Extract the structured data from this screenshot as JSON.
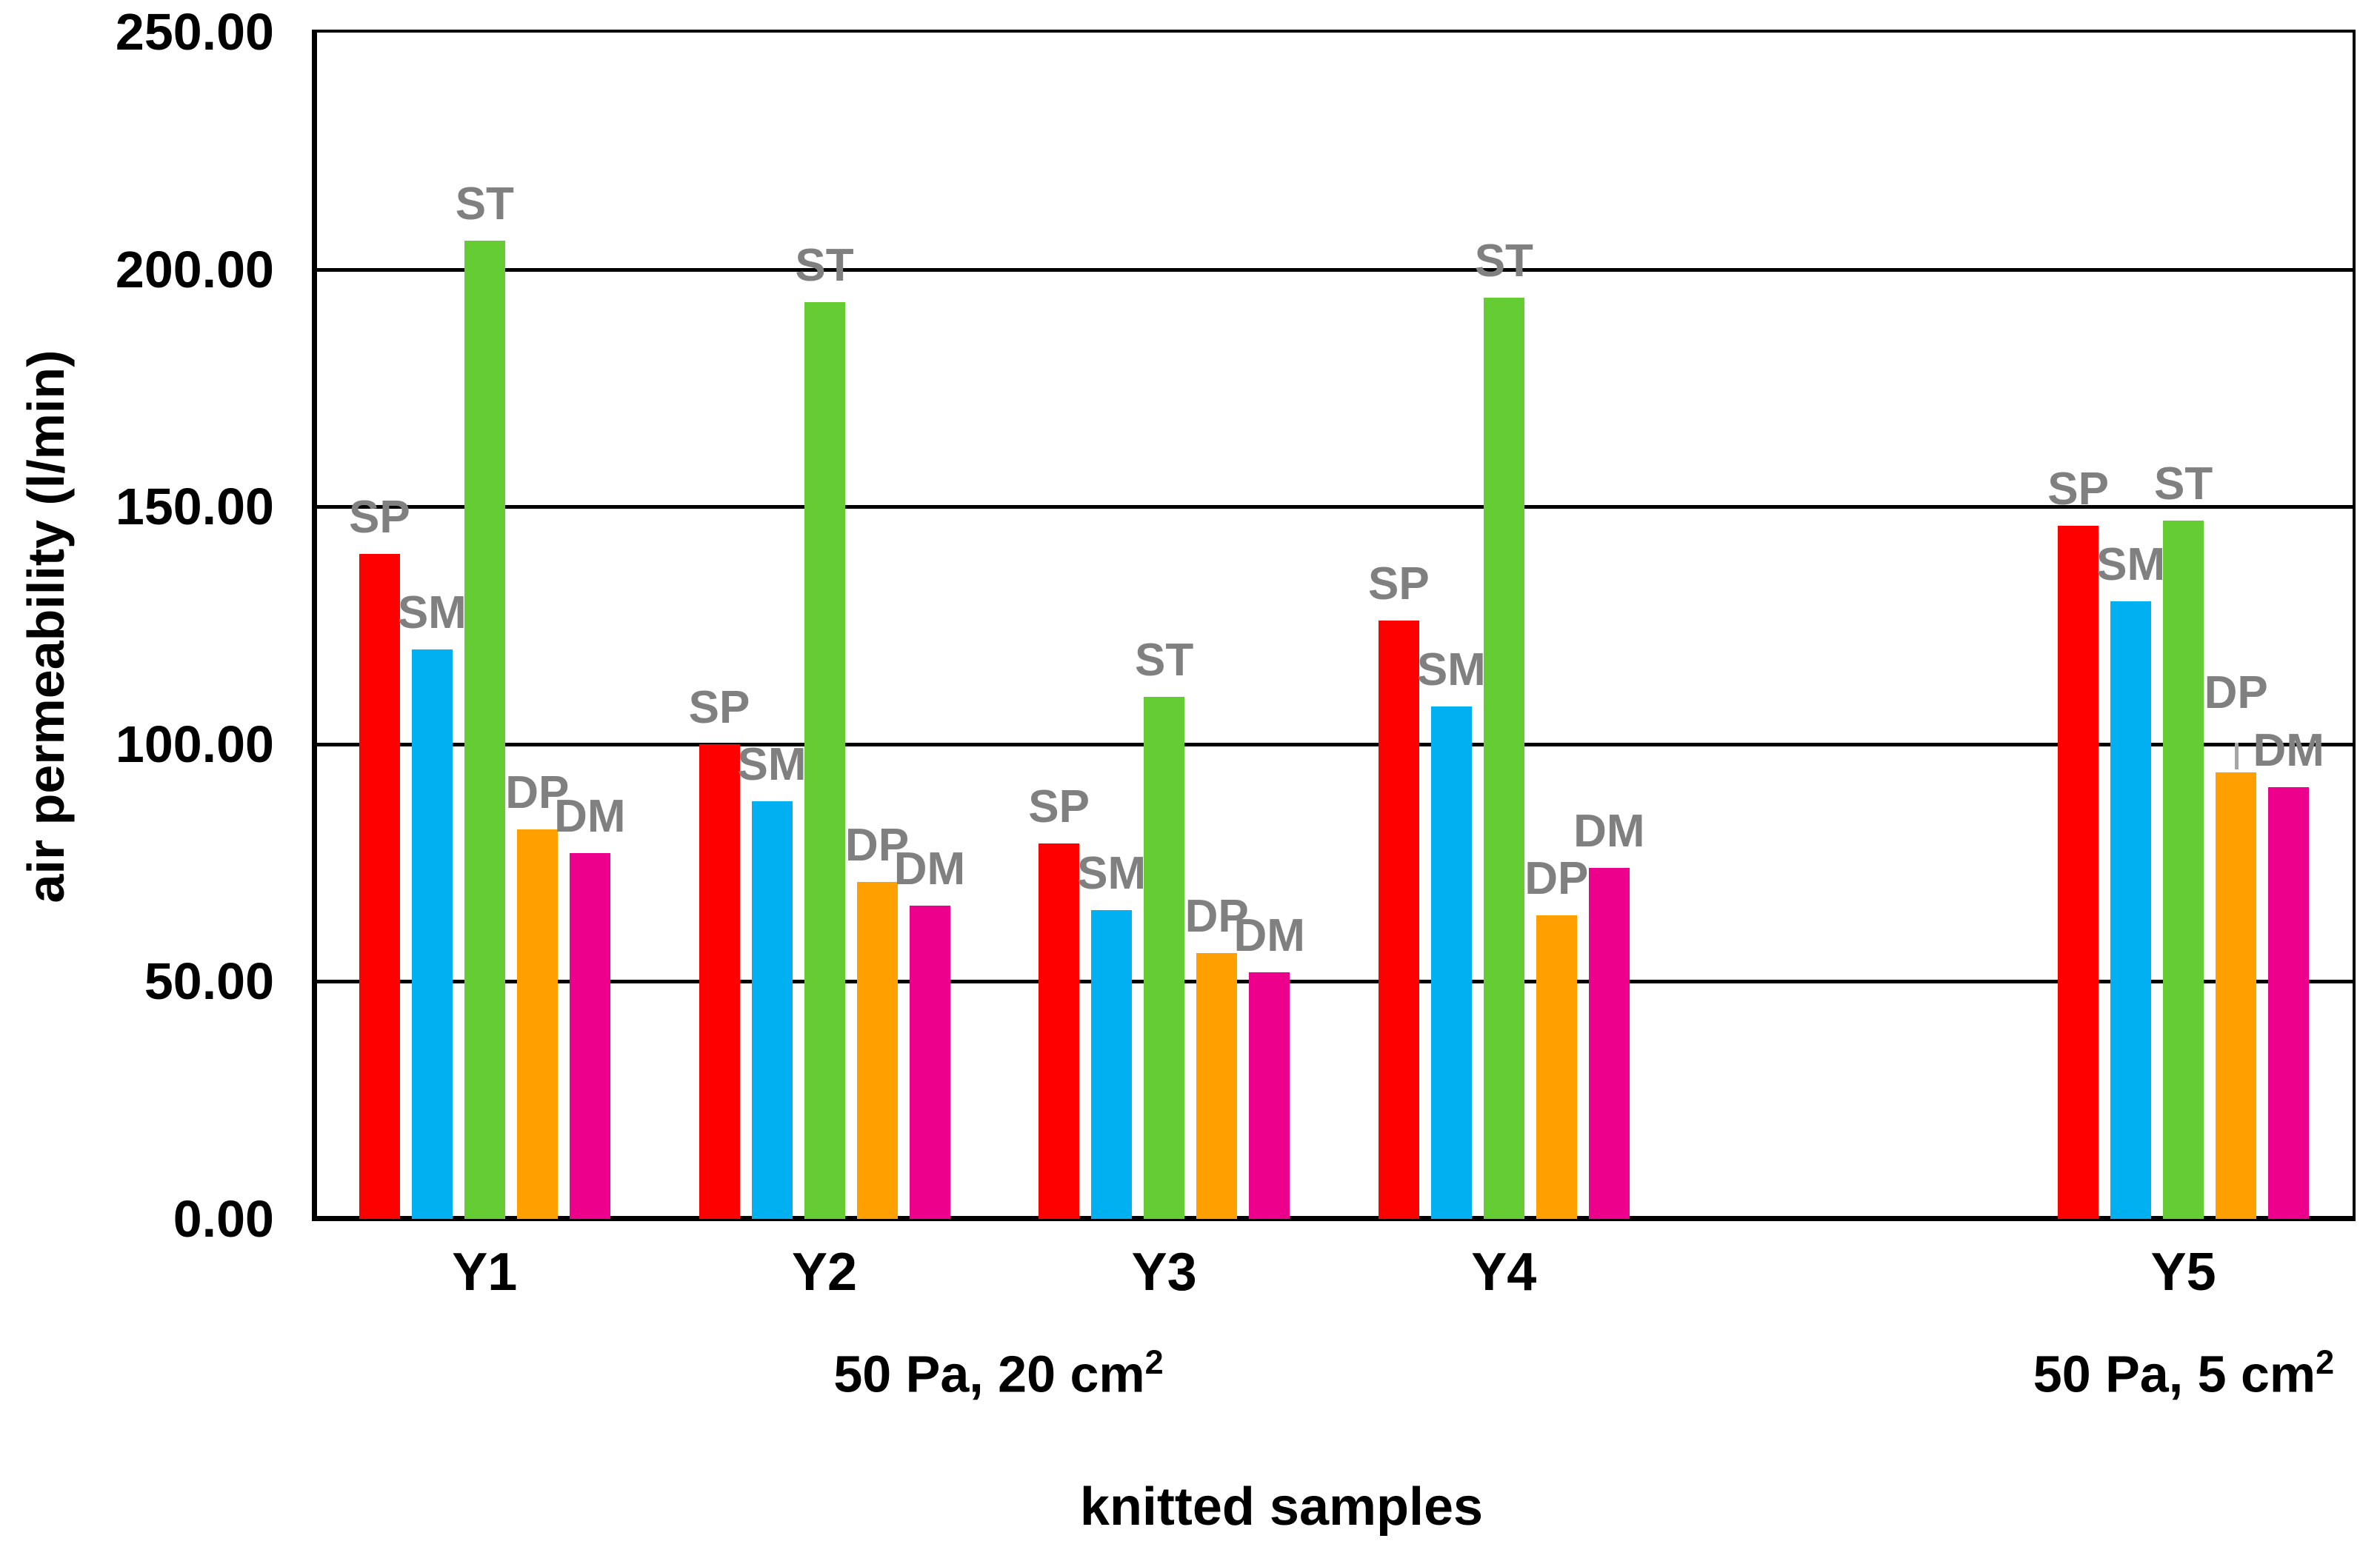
{
  "chart_data": {
    "type": "bar",
    "title": "",
    "xlabel": "knitted samples",
    "ylabel": "air permeability (l/min)",
    "ylim": [
      0,
      250
    ],
    "ytick_interval": 50,
    "ytick_labels": [
      "0.00",
      "50.00",
      "100.00",
      "150.00",
      "200.00",
      "250.00"
    ],
    "grid": true,
    "legend": "none - bars labeled directly above with series names",
    "bar_label_color": "#808080",
    "categories": [
      {
        "label": "Y1",
        "slot": 0
      },
      {
        "label": "Y2",
        "slot": 1
      },
      {
        "label": "Y3",
        "slot": 2
      },
      {
        "label": "Y4",
        "slot": 3
      },
      {
        "label": "Y5",
        "slot": 5
      }
    ],
    "series": [
      {
        "name": "SP",
        "color": "#FF0000",
        "values": [
          140,
          100,
          79,
          126,
          146
        ]
      },
      {
        "name": "SM",
        "color": "#00B0F0",
        "values": [
          120,
          88,
          65,
          108,
          130
        ]
      },
      {
        "name": "ST",
        "color": "#66CC33",
        "values": [
          206,
          193,
          110,
          194,
          147
        ]
      },
      {
        "name": "DP",
        "color": "#FFA000",
        "values": [
          82,
          71,
          56,
          64,
          94
        ]
      },
      {
        "name": "DM",
        "color": "#EC008C",
        "values": [
          77,
          66,
          52,
          74,
          91
        ]
      }
    ],
    "condition_labels": [
      {
        "text": "50 Pa, 20 cm",
        "sup": "2",
        "applies_to": [
          "Y1",
          "Y2",
          "Y3",
          "Y4"
        ]
      },
      {
        "text": "50 Pa, 5 cm",
        "sup": "2",
        "applies_to": [
          "Y5"
        ]
      }
    ],
    "annotations": [
      {
        "type": "leader-line",
        "category": "Y5",
        "series": "DP",
        "color": "#A6A6A6"
      }
    ]
  }
}
